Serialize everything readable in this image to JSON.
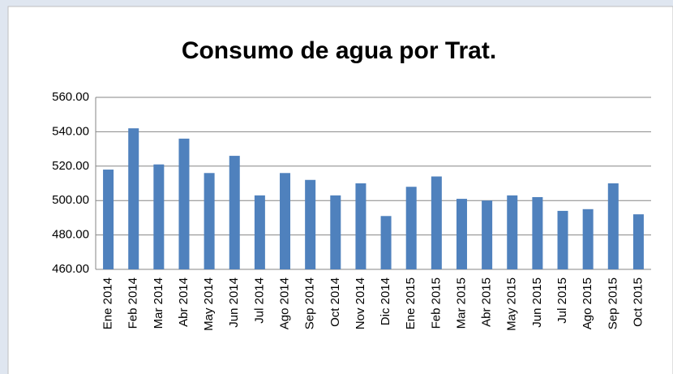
{
  "chart_data": {
    "type": "bar",
    "title": "Consumo de agua por Trat.",
    "categories": [
      "Ene 2014",
      "Feb 2014",
      "Mar 2014",
      "Abr 2014",
      "May 2014",
      "Jun 2014",
      "Jul 2014",
      "Ago 2014",
      "Sep 2014",
      "Oct 2014",
      "Nov 2014",
      "Dic 2014",
      "Ene 2015",
      "Feb 2015",
      "Mar 2015",
      "Abr 2015",
      "May 2015",
      "Jun 2015",
      "Jul 2015",
      "Ago 2015",
      "Sep 2015",
      "Oct 2015"
    ],
    "values": [
      518,
      542,
      521,
      536,
      516,
      526,
      503,
      516,
      512,
      503,
      510,
      491,
      508,
      514,
      501,
      500,
      503,
      502,
      494,
      495,
      510,
      492
    ],
    "color": "#4f81bd",
    "ylim": [
      460,
      560
    ],
    "yticks": [
      {
        "value": 460,
        "label": "460.00"
      },
      {
        "value": 480,
        "label": "480.00"
      },
      {
        "value": 500,
        "label": "500.00"
      },
      {
        "value": 520,
        "label": "520.00"
      },
      {
        "value": 540,
        "label": "540.00"
      },
      {
        "value": 560,
        "label": "560.00"
      }
    ],
    "grid": true
  }
}
